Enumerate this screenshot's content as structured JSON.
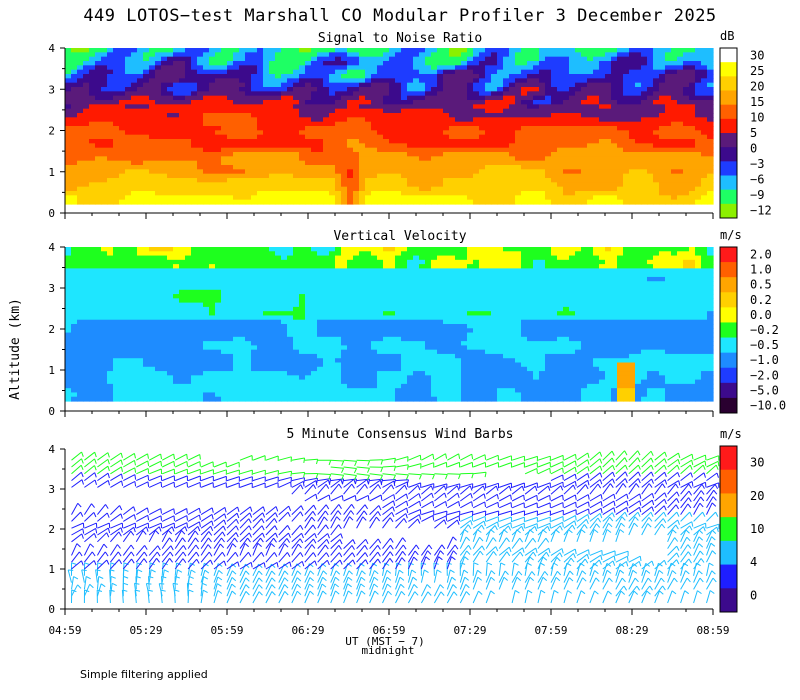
{
  "title": "449 LOTOS−test Marshall CO Modular Profiler  3 December 2025",
  "ylabel": "Altitude (km)",
  "xlabel": "UT (MST − 7)",
  "midnight_label": "midnight",
  "footer_note": "Simple filtering applied",
  "x_ticks": [
    "04:59",
    "05:29",
    "05:59",
    "06:29",
    "06:59",
    "07:29",
    "07:59",
    "08:29",
    "08:59"
  ],
  "y_ticks": [
    "0",
    "1",
    "2",
    "3",
    "4"
  ],
  "chart_data": [
    {
      "type": "heatmap",
      "title": "Signal to Noise Ratio",
      "unit": "dB",
      "ylim": [
        0,
        4
      ],
      "x_range": [
        "04:59",
        "08:59"
      ],
      "levels": [
        "30",
        "25",
        "20",
        "15",
        "10",
        "5",
        "0",
        "−3",
        "−6",
        "−9",
        "−12"
      ],
      "colors": [
        "#ffffff",
        "#ffff00",
        "#ffd000",
        "#ffa500",
        "#ff6000",
        "#ff1a00",
        "#5a1a7a",
        "#3c0a8c",
        "#1e3cff",
        "#1ebeff",
        "#1eff64",
        "#8cf000"
      ],
      "summary": "High SNR (15-25 dB) below ~1.5 km, decreasing with altitude to 0 to -12 dB near 4 km"
    },
    {
      "type": "heatmap",
      "title": "Vertical Velocity",
      "unit": "m/s",
      "ylim": [
        0,
        4
      ],
      "x_range": [
        "04:59",
        "08:59"
      ],
      "levels": [
        "2.0",
        "1.0",
        "0.5",
        "0.2",
        "0.0",
        "−0.2",
        "−0.5",
        "−1.0",
        "−2.0",
        "−5.0",
        "−10.0"
      ],
      "colors": [
        "#ff1a1a",
        "#ff6000",
        "#ffa500",
        "#ffd000",
        "#ffff00",
        "#1eff1e",
        "#1ee6ff",
        "#1e8cff",
        "#1e3cff",
        "#3c0a8c",
        "#2a0030"
      ],
      "summary": "Mostly -0.5 to -1.0 m/s throughout, -0.2 to 0.0 m/s near 4 km"
    },
    {
      "type": "wind_barbs",
      "title": "5 Minute Consensus Wind Barbs",
      "unit": "m/s",
      "ylim": [
        0,
        4
      ],
      "x_range": [
        "04:59",
        "08:59"
      ],
      "levels": [
        "30",
        "20",
        "10",
        "4",
        "0"
      ],
      "colors": [
        "#ff1a1a",
        "#ff6000",
        "#ffa500",
        "#1eff1e",
        "#1ebeff",
        "#1e1eff",
        "#3c0a8c"
      ],
      "summary": "Light barbs (4-10 m/s) below 1 km, 0-4 m/s in mid levels, 10-20 m/s near 3.5 km"
    }
  ]
}
